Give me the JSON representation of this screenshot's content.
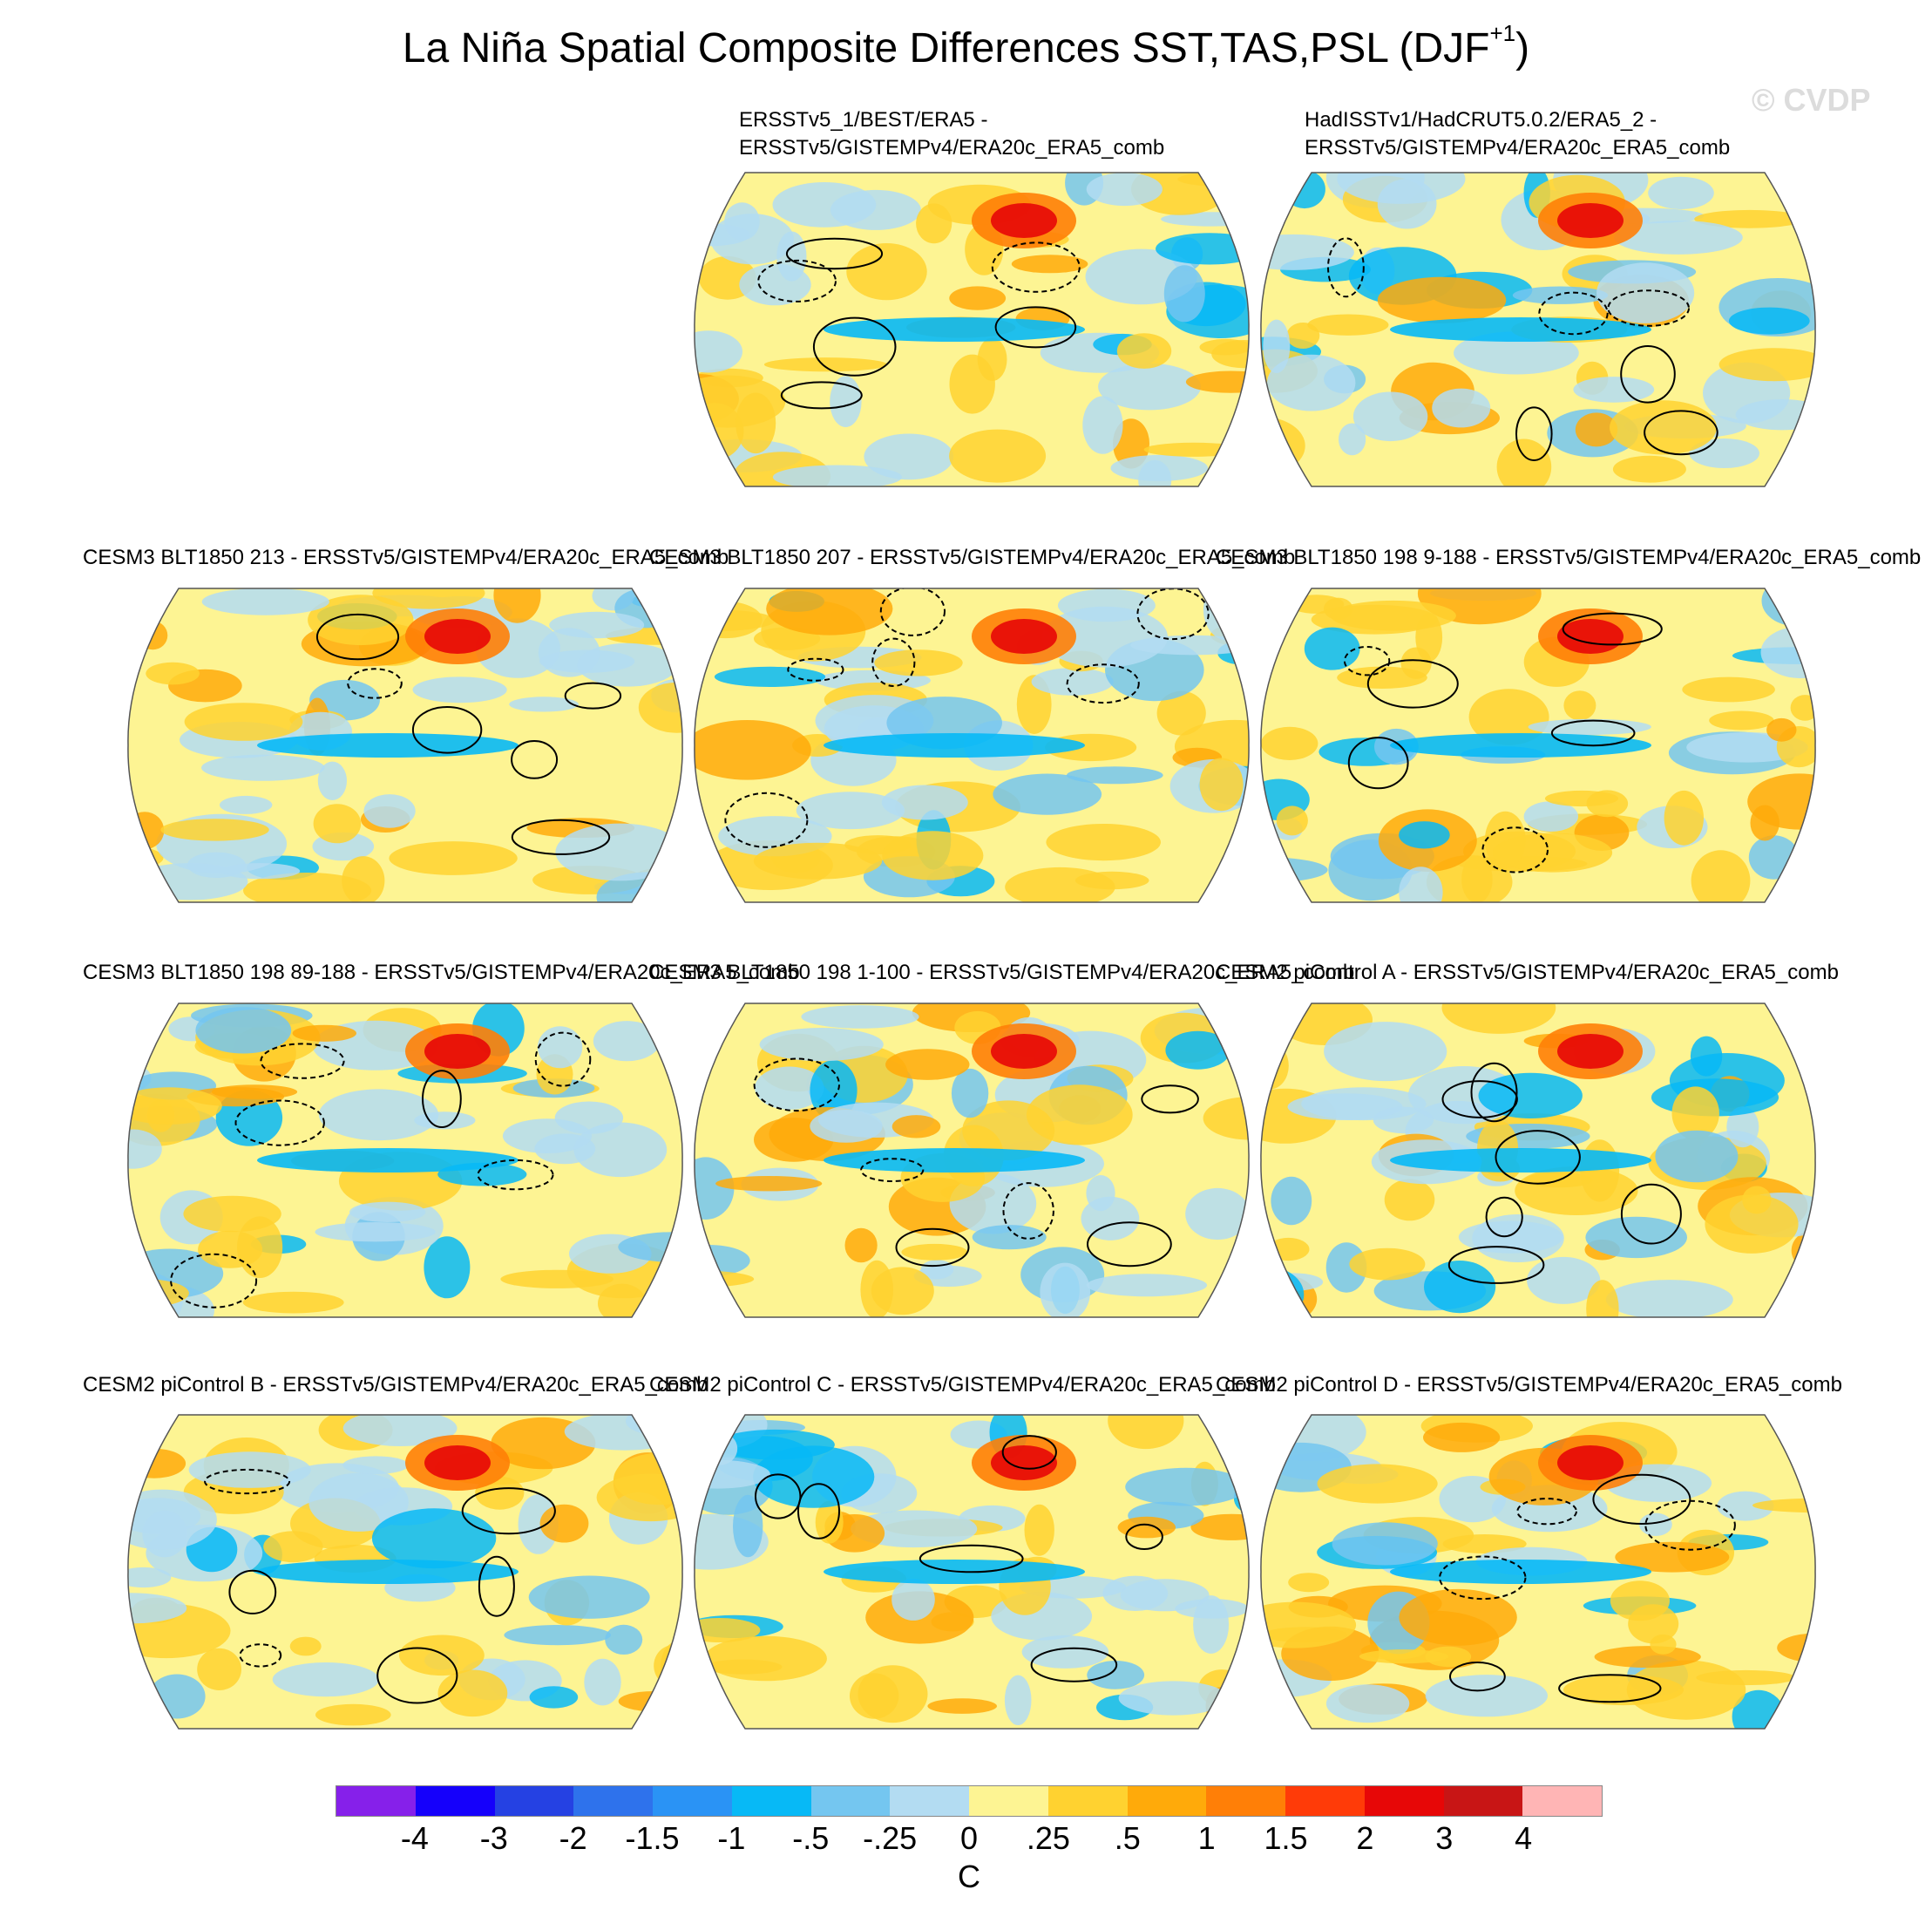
{
  "header": {
    "title": "La Niña Spatial Composite Differences SST,TAS,PSL (DJF",
    "title_sup": "+1",
    "title_end": ")",
    "watermark": "© CVDP"
  },
  "panels": [
    {
      "line1": "ERSSTv5_1/BEST/ERA5 -",
      "line2": "ERSSTv5/GISTEMPv4/ERA20c_ERA5_comb"
    },
    {
      "line1": "HadISSTv1/HadCRUT5.0.2/ERA5_2 -",
      "line2": "ERSSTv5/GISTEMPv4/ERA20c_ERA5_comb"
    },
    {
      "line1": "CESM3 BLT1850 213 - ERSSTv5/GISTEMPv4/ERA20c_ERA5_comb"
    },
    {
      "line1": "CESM3 BLT1850 207 - ERSSTv5/GISTEMPv4/ERA20c_ERA5_comb"
    },
    {
      "line1": "CESM3 BLT1850 198 9-188 - ERSSTv5/GISTEMPv4/ERA20c_ERA5_comb"
    },
    {
      "line1": "CESM3 BLT1850 198 89-188 - ERSSTv5/GISTEMPv4/ERA20c_ERA5_comb"
    },
    {
      "line1": "CESM3 BLT1850 198 1-100 - ERSSTv5/GISTEMPv4/ERA20c_ERA5_comb"
    },
    {
      "line1": "CESM2 piControl A - ERSSTv5/GISTEMPv4/ERA20c_ERA5_comb"
    },
    {
      "line1": "CESM2 piControl B - ERSSTv5/GISTEMPv4/ERA20c_ERA5_comb"
    },
    {
      "line1": "CESM2 piControl C - ERSSTv5/GISTEMPv4/ERA20c_ERA5_comb"
    },
    {
      "line1": "CESM2 piControl D - ERSSTv5/GISTEMPv4/ERA20c_ERA5_comb"
    }
  ],
  "colorbar": {
    "colors": [
      "#8620ea",
      "#1500fb",
      "#2541e3",
      "#2e72ec",
      "#2a93f5",
      "#07b9f6",
      "#74c6f0",
      "#b3dcf2",
      "#fdf493",
      "#ffd230",
      "#ffaa0a",
      "#ff7f07",
      "#ff3b08",
      "#e70707",
      "#c81515",
      "#ffb5b5"
    ],
    "ticks": [
      "-4",
      "-3",
      "-2",
      "-1.5",
      "-1",
      "-.5",
      "-.25",
      "0",
      ".25",
      ".5",
      "1",
      "1.5",
      "2",
      "3",
      "4"
    ],
    "units": "C"
  }
}
